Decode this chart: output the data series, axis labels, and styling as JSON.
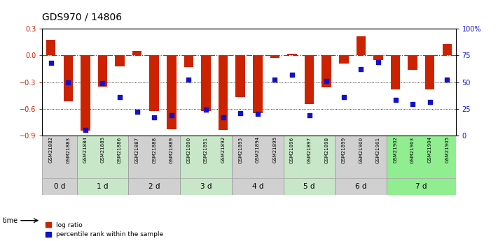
{
  "title": "GDS970 / 14806",
  "samples": [
    "GSM21882",
    "GSM21883",
    "GSM21884",
    "GSM21885",
    "GSM21886",
    "GSM21887",
    "GSM21888",
    "GSM21889",
    "GSM21890",
    "GSM21891",
    "GSM21892",
    "GSM21893",
    "GSM21894",
    "GSM21895",
    "GSM21896",
    "GSM21897",
    "GSM21898",
    "GSM21899",
    "GSM21900",
    "GSM21901",
    "GSM21902",
    "GSM21903",
    "GSM21904",
    "GSM21905"
  ],
  "log_ratio": [
    0.18,
    -0.52,
    -0.85,
    -0.35,
    -0.12,
    0.05,
    -0.63,
    -0.83,
    -0.13,
    -0.63,
    -0.84,
    -0.47,
    -0.65,
    -0.03,
    0.02,
    -0.55,
    -0.36,
    -0.09,
    0.22,
    -0.05,
    -0.38,
    -0.16,
    -0.38,
    0.13
  ],
  "percentile": [
    68,
    50,
    5,
    49,
    36,
    22,
    17,
    19,
    52,
    24,
    17,
    21,
    20,
    52,
    57,
    19,
    51,
    36,
    62,
    69,
    33,
    29,
    31,
    52
  ],
  "groups": [
    {
      "label": "0 d",
      "start": 0,
      "end": 2,
      "color": "#d0d0d0"
    },
    {
      "label": "1 d",
      "start": 2,
      "end": 5,
      "color": "#c8e6c8"
    },
    {
      "label": "2 d",
      "start": 5,
      "end": 8,
      "color": "#d0d0d0"
    },
    {
      "label": "3 d",
      "start": 8,
      "end": 11,
      "color": "#c8e6c8"
    },
    {
      "label": "4 d",
      "start": 11,
      "end": 14,
      "color": "#d0d0d0"
    },
    {
      "label": "5 d",
      "start": 14,
      "end": 17,
      "color": "#c8e6c8"
    },
    {
      "label": "6 d",
      "start": 17,
      "end": 20,
      "color": "#d0d0d0"
    },
    {
      "label": "7 d",
      "start": 20,
      "end": 24,
      "color": "#90ee90"
    }
  ],
  "ylim_left": [
    -0.9,
    0.3
  ],
  "ylim_right": [
    0,
    100
  ],
  "bar_color": "#cc2200",
  "dot_color": "#1111cc",
  "zero_line_color": "#cc2200",
  "yticks_left": [
    -0.9,
    -0.6,
    -0.3,
    0.0,
    0.3
  ],
  "yticks_right": [
    0,
    25,
    50,
    75,
    100
  ],
  "title_fontsize": 10,
  "tick_fontsize": 7,
  "sample_fontsize": 5
}
